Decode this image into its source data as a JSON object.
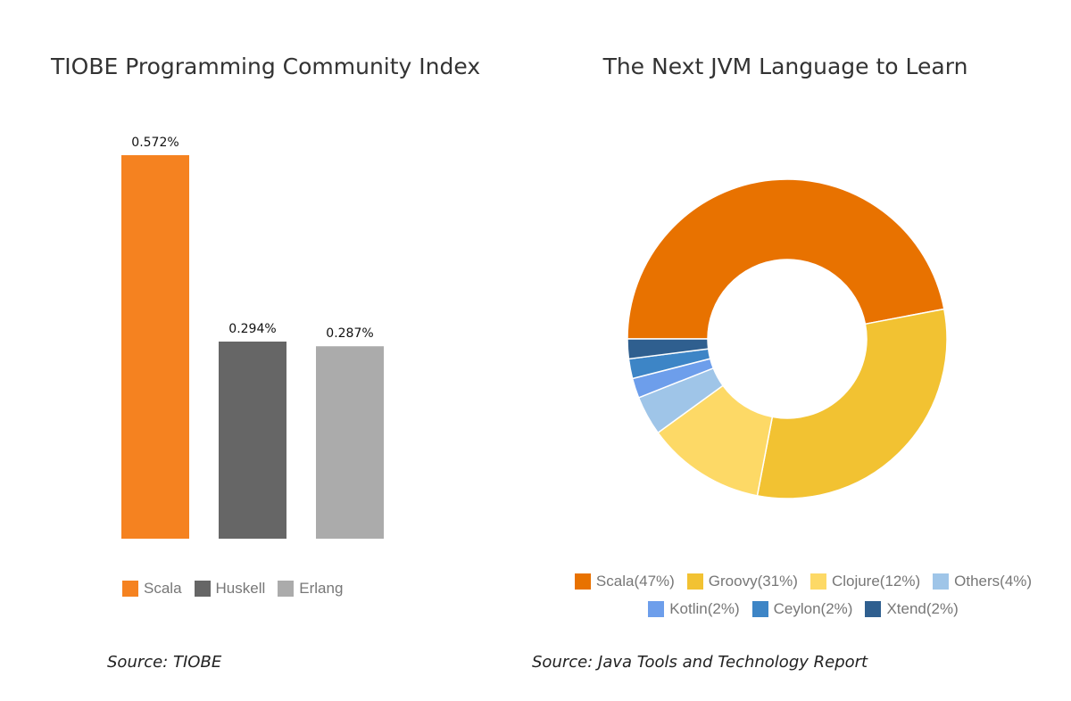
{
  "chart_data": [
    {
      "type": "bar",
      "title": "TIOBE Programming Community Index",
      "categories": [
        "Scala",
        "Huskell",
        "Erlang"
      ],
      "values": [
        0.572,
        0.294,
        0.287
      ],
      "value_labels": [
        "0.572%",
        "0.294%",
        "0.287%"
      ],
      "colors": [
        "#F58220",
        "#666666",
        "#ABABAB"
      ],
      "legend": [
        "Scala",
        "Huskell",
        "Erlang"
      ],
      "legend_position": "bottom",
      "ylim": [
        0,
        0.572
      ],
      "grid": false,
      "source": "Source: TIOBE"
    },
    {
      "type": "pie",
      "donut": true,
      "title": "The Next JVM Language to Learn",
      "slices": [
        {
          "label": "Scala(47%)",
          "value": 47,
          "color": "#E87200"
        },
        {
          "label": "Groovy(31%)",
          "value": 31,
          "color": "#F2C232"
        },
        {
          "label": "Clojure(12%)",
          "value": 12,
          "color": "#FDD966"
        },
        {
          "label": "Others(4%)",
          "value": 4,
          "color": "#9FC5E8"
        },
        {
          "label": "Kotlin(2%)",
          "value": 2,
          "color": "#6D9EEB"
        },
        {
          "label": "Ceylon(2%)",
          "value": 2,
          "color": "#3D85C6"
        },
        {
          "label": "Xtend(2%)",
          "value": 2,
          "color": "#2F5F8F"
        }
      ],
      "legend_position": "bottom",
      "source": "Source: Java Tools and Technology Report"
    }
  ]
}
